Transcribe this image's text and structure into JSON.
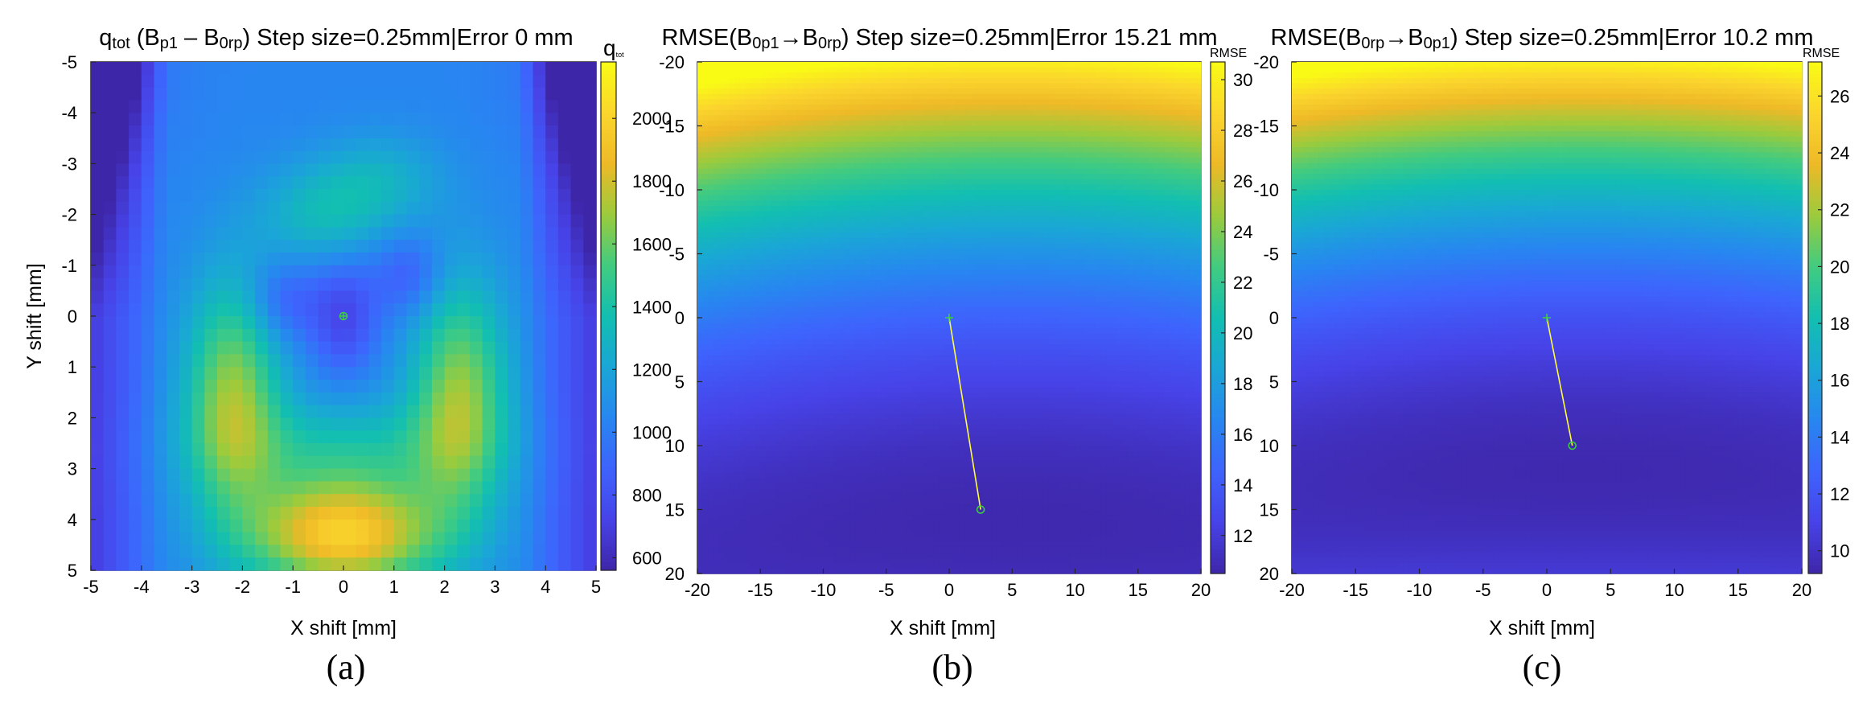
{
  "chart_data": [
    {
      "type": "heatmap",
      "panel_label": "(a)",
      "title": {
        "parts": [
          {
            "text": "q",
            "style": "normal"
          },
          {
            "text": "tot",
            "style": "sub"
          },
          {
            "text": " (B",
            "style": "normal"
          },
          {
            "text": "p1",
            "style": "sub"
          },
          {
            "text": " – B",
            "style": "normal"
          },
          {
            "text": "0rp",
            "style": "sub"
          },
          {
            "text": ") Step size=0.25mm|Error 0 mm",
            "style": "normal"
          }
        ]
      },
      "xlabel": "X shift [mm]",
      "ylabel": "Y shift [mm]",
      "xlim": [
        -5,
        5
      ],
      "ylim": [
        -5,
        5
      ],
      "y_direction": "down",
      "xticks": [
        -5,
        -4,
        -3,
        -2,
        -1,
        0,
        1,
        2,
        3,
        4,
        5
      ],
      "yticks": [
        -5,
        -4,
        -3,
        -2,
        -1,
        0,
        1,
        2,
        3,
        4,
        5
      ],
      "step_mm": 0.25,
      "colorbar": {
        "label_main": "q",
        "label_sub": "tot",
        "range": [
          560,
          2180
        ],
        "ticks": [
          600,
          800,
          1000,
          1200,
          1400,
          1600,
          1800,
          2000
        ]
      },
      "markers": [
        {
          "kind": "circle-plus",
          "x": 0,
          "y": 0
        }
      ],
      "field": "qtot"
    },
    {
      "type": "heatmap",
      "panel_label": "(b)",
      "title": {
        "parts": [
          {
            "text": "RMSE(B",
            "style": "normal"
          },
          {
            "text": "0p1",
            "style": "sub"
          },
          {
            "text": "→B",
            "style": "normal"
          },
          {
            "text": "0rp",
            "style": "sub"
          },
          {
            "text": ") Step size=0.25mm|Error 15.21 mm",
            "style": "normal"
          }
        ]
      },
      "xlabel": "X shift [mm]",
      "ylabel": "",
      "xlim": [
        -20,
        20
      ],
      "ylim": [
        -20,
        20
      ],
      "y_direction": "down",
      "xticks": [
        -20,
        -15,
        -10,
        -5,
        0,
        5,
        10,
        15,
        20
      ],
      "yticks": [
        -20,
        -15,
        -10,
        -5,
        0,
        5,
        10,
        15,
        20
      ],
      "colorbar": {
        "label_main": "RMSE",
        "label_sub": "",
        "range": [
          10.5,
          30.7
        ],
        "ticks": [
          12,
          14,
          16,
          18,
          20,
          22,
          24,
          26,
          28,
          30
        ]
      },
      "field": "rmse",
      "minimum": [
        5,
        16
      ],
      "markers": [
        {
          "kind": "plus",
          "x": 0,
          "y": 0
        },
        {
          "kind": "circle",
          "x": 2.5,
          "y": 15
        }
      ],
      "line": [
        [
          0,
          0
        ],
        [
          2.5,
          15
        ]
      ]
    },
    {
      "type": "heatmap",
      "panel_label": "(c)",
      "title": {
        "parts": [
          {
            "text": "RMSE(B",
            "style": "normal"
          },
          {
            "text": "0rp",
            "style": "sub"
          },
          {
            "text": "→B",
            "style": "normal"
          },
          {
            "text": "0p1",
            "style": "sub"
          },
          {
            "text": ") Step size=0.25mm|Error 10.2 mm",
            "style": "normal"
          }
        ]
      },
      "xlabel": "X shift [mm]",
      "ylabel": "",
      "xlim": [
        -20,
        20
      ],
      "ylim": [
        -20,
        20
      ],
      "y_direction": "down",
      "xticks": [
        -20,
        -15,
        -10,
        -5,
        0,
        5,
        10,
        15,
        20
      ],
      "yticks": [
        -20,
        -15,
        -10,
        -5,
        0,
        5,
        10,
        15,
        20
      ],
      "colorbar": {
        "label_main": "RMSE",
        "label_sub": "",
        "range": [
          9.2,
          27.2
        ],
        "ticks": [
          10,
          12,
          14,
          16,
          18,
          20,
          22,
          24,
          26
        ]
      },
      "field": "rmse",
      "minimum": [
        3,
        12
      ],
      "markers": [
        {
          "kind": "plus",
          "x": 0,
          "y": 0
        },
        {
          "kind": "circle",
          "x": 2,
          "y": 10
        }
      ],
      "line": [
        [
          0,
          0
        ],
        [
          2,
          10
        ]
      ]
    }
  ],
  "colors": {
    "colormap": [
      "#3e26a8",
      "#4743e8",
      "#3e63fd",
      "#2787f0",
      "#1aa6d6",
      "#12bfb1",
      "#42cb80",
      "#9ccb3c",
      "#eeb927",
      "#fbd62d",
      "#f9fb15"
    ],
    "marker": "#3cd23c",
    "path_line": "#ffff3c"
  }
}
